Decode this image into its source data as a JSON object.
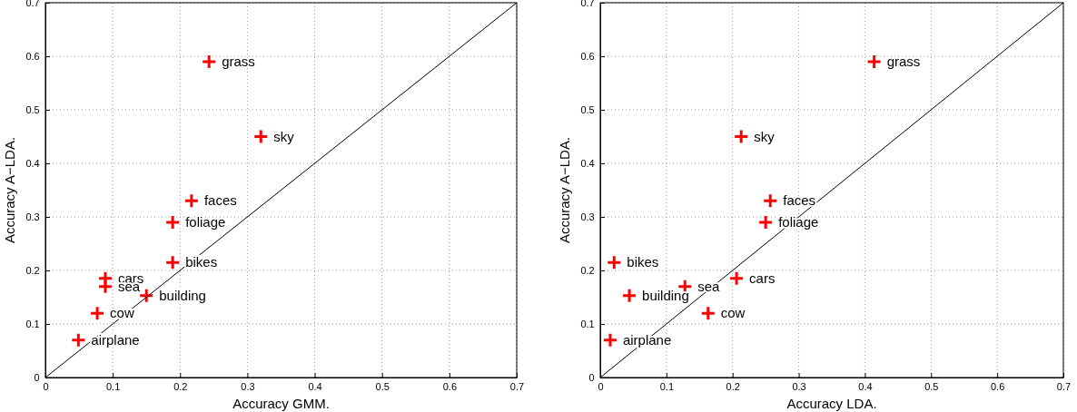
{
  "chart_data": [
    {
      "type": "scatter",
      "xlabel": "Accuracy GMM.",
      "ylabel": "Accuracy A−LDA.",
      "xlim": [
        0,
        0.7
      ],
      "ylim": [
        0,
        0.7
      ],
      "xticks": [
        0,
        0.1,
        0.2,
        0.3,
        0.4,
        0.5,
        0.6,
        0.7
      ],
      "yticks": [
        0,
        0.1,
        0.2,
        0.3,
        0.4,
        0.5,
        0.6,
        0.7
      ],
      "grid": true,
      "marker": "cross",
      "series": [
        {
          "color": "#ff0000",
          "x": [
            0.243,
            0.32,
            0.217,
            0.189,
            0.189,
            0.089,
            0.089,
            0.15,
            0.077,
            0.049
          ],
          "values": [
            0.59,
            0.45,
            0.33,
            0.29,
            0.215,
            0.185,
            0.17,
            0.153,
            0.12,
            0.07
          ]
        },
        {
          "type": "line",
          "color": "#000000",
          "marker": "none",
          "x": [
            0,
            0.7
          ],
          "values": [
            0,
            0.7
          ]
        }
      ],
      "annotations": [
        {
          "text": "grass",
          "x": 0.243,
          "y": 0.59
        },
        {
          "text": "sky",
          "x": 0.32,
          "y": 0.45
        },
        {
          "text": "faces",
          "x": 0.217,
          "y": 0.33
        },
        {
          "text": "foliage",
          "x": 0.189,
          "y": 0.29
        },
        {
          "text": "bikes",
          "x": 0.189,
          "y": 0.215
        },
        {
          "text": "cars",
          "x": 0.089,
          "y": 0.185
        },
        {
          "text": "sea",
          "x": 0.089,
          "y": 0.17
        },
        {
          "text": "building",
          "x": 0.15,
          "y": 0.153
        },
        {
          "text": "cow",
          "x": 0.077,
          "y": 0.12
        },
        {
          "text": "airplane",
          "x": 0.049,
          "y": 0.07
        }
      ]
    },
    {
      "type": "scatter",
      "xlabel": "Accuracy LDA.",
      "ylabel": "Accuracy A−LDA.",
      "xlim": [
        0,
        0.7
      ],
      "ylim": [
        0,
        0.7
      ],
      "xticks": [
        0,
        0.1,
        0.2,
        0.3,
        0.4,
        0.5,
        0.6,
        0.7
      ],
      "yticks": [
        0,
        0.1,
        0.2,
        0.3,
        0.4,
        0.5,
        0.6,
        0.7
      ],
      "grid": true,
      "marker": "cross",
      "series": [
        {
          "color": "#ff0000",
          "x": [
            0.414,
            0.213,
            0.257,
            0.25,
            0.021,
            0.206,
            0.128,
            0.044,
            0.163,
            0.015
          ],
          "values": [
            0.59,
            0.45,
            0.33,
            0.29,
            0.215,
            0.185,
            0.17,
            0.153,
            0.12,
            0.07
          ]
        },
        {
          "type": "line",
          "color": "#000000",
          "marker": "none",
          "x": [
            0,
            0.7
          ],
          "values": [
            0,
            0.7
          ]
        }
      ],
      "annotations": [
        {
          "text": "grass",
          "x": 0.414,
          "y": 0.59
        },
        {
          "text": "sky",
          "x": 0.213,
          "y": 0.45
        },
        {
          "text": "faces",
          "x": 0.257,
          "y": 0.33
        },
        {
          "text": "foliage",
          "x": 0.25,
          "y": 0.29
        },
        {
          "text": "bikes",
          "x": 0.021,
          "y": 0.215
        },
        {
          "text": "cars",
          "x": 0.206,
          "y": 0.185
        },
        {
          "text": "sea",
          "x": 0.128,
          "y": 0.17
        },
        {
          "text": "building",
          "x": 0.044,
          "y": 0.153
        },
        {
          "text": "cow",
          "x": 0.163,
          "y": 0.12
        },
        {
          "text": "airplane",
          "x": 0.015,
          "y": 0.07
        }
      ]
    }
  ]
}
